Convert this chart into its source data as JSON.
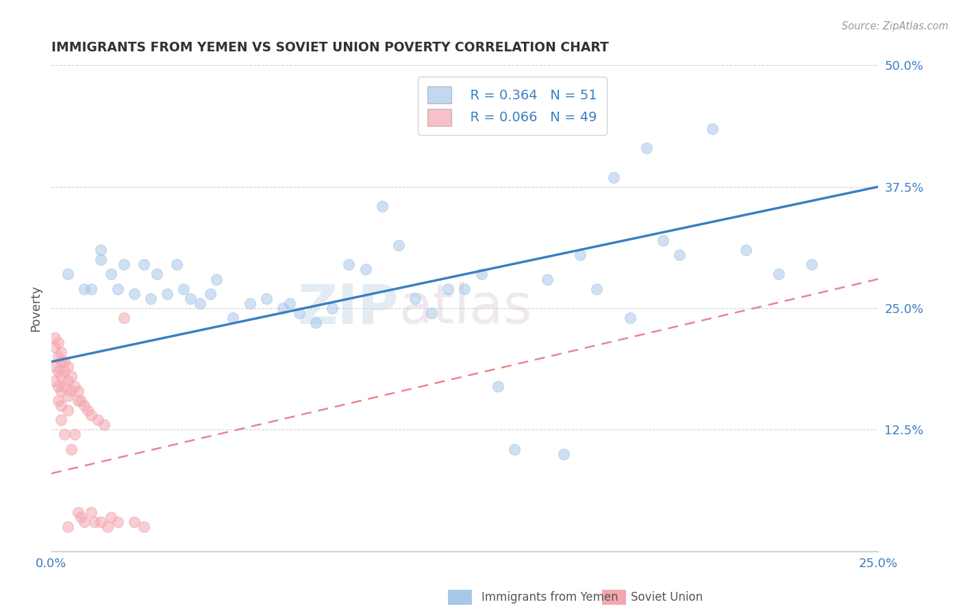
{
  "title": "IMMIGRANTS FROM YEMEN VS SOVIET UNION POVERTY CORRELATION CHART",
  "source": "Source: ZipAtlas.com",
  "ylabel": "Poverty",
  "xlim": [
    0,
    0.25
  ],
  "ylim": [
    0,
    0.5
  ],
  "yticks_right": [
    0.125,
    0.25,
    0.375,
    0.5
  ],
  "ytick_labels_right": [
    "12.5%",
    "25.0%",
    "37.5%",
    "50.0%"
  ],
  "xticks": [
    0.0,
    0.05,
    0.1,
    0.15,
    0.2,
    0.25
  ],
  "legend_r1": "R = 0.364",
  "legend_n1": "N = 51",
  "legend_r2": "R = 0.066",
  "legend_n2": "N = 49",
  "yemen_color": "#a8c8e8",
  "soviet_color": "#f4a7b0",
  "yemen_line_color": "#3a7fc1",
  "soviet_line_color": "#e8858a",
  "background_color": "#ffffff",
  "grid_color": "#d0d0d0",
  "watermark_zip": "ZIP",
  "watermark_atlas": "atlas",
  "yemen_x": [
    0.005,
    0.01,
    0.012,
    0.015,
    0.015,
    0.018,
    0.02,
    0.022,
    0.025,
    0.028,
    0.03,
    0.032,
    0.035,
    0.038,
    0.04,
    0.042,
    0.045,
    0.048,
    0.05,
    0.055,
    0.06,
    0.065,
    0.07,
    0.072,
    0.075,
    0.08,
    0.085,
    0.09,
    0.095,
    0.1,
    0.105,
    0.11,
    0.115,
    0.12,
    0.125,
    0.13,
    0.135,
    0.14,
    0.15,
    0.155,
    0.16,
    0.165,
    0.17,
    0.175,
    0.18,
    0.185,
    0.19,
    0.2,
    0.21,
    0.22,
    0.23
  ],
  "yemen_y": [
    0.285,
    0.27,
    0.27,
    0.3,
    0.31,
    0.285,
    0.27,
    0.295,
    0.265,
    0.295,
    0.26,
    0.285,
    0.265,
    0.295,
    0.27,
    0.26,
    0.255,
    0.265,
    0.28,
    0.24,
    0.255,
    0.26,
    0.25,
    0.255,
    0.245,
    0.235,
    0.25,
    0.295,
    0.29,
    0.355,
    0.315,
    0.26,
    0.245,
    0.27,
    0.27,
    0.285,
    0.17,
    0.105,
    0.28,
    0.1,
    0.305,
    0.27,
    0.385,
    0.24,
    0.415,
    0.32,
    0.305,
    0.435,
    0.31,
    0.285,
    0.295
  ],
  "soviet_x": [
    0.001,
    0.001,
    0.001,
    0.001,
    0.002,
    0.002,
    0.002,
    0.002,
    0.002,
    0.003,
    0.003,
    0.003,
    0.003,
    0.003,
    0.003,
    0.004,
    0.004,
    0.004,
    0.004,
    0.005,
    0.005,
    0.005,
    0.005,
    0.005,
    0.006,
    0.006,
    0.006,
    0.007,
    0.007,
    0.008,
    0.008,
    0.008,
    0.009,
    0.009,
    0.01,
    0.01,
    0.011,
    0.012,
    0.012,
    0.013,
    0.014,
    0.015,
    0.016,
    0.017,
    0.018,
    0.02,
    0.022,
    0.025,
    0.028
  ],
  "soviet_y": [
    0.22,
    0.21,
    0.19,
    0.175,
    0.215,
    0.2,
    0.185,
    0.17,
    0.155,
    0.205,
    0.195,
    0.18,
    0.165,
    0.15,
    0.135,
    0.195,
    0.185,
    0.17,
    0.12,
    0.19,
    0.175,
    0.16,
    0.145,
    0.025,
    0.18,
    0.165,
    0.105,
    0.17,
    0.12,
    0.165,
    0.155,
    0.04,
    0.155,
    0.035,
    0.15,
    0.03,
    0.145,
    0.04,
    0.14,
    0.03,
    0.135,
    0.03,
    0.13,
    0.025,
    0.035,
    0.03,
    0.24,
    0.03,
    0.025
  ]
}
